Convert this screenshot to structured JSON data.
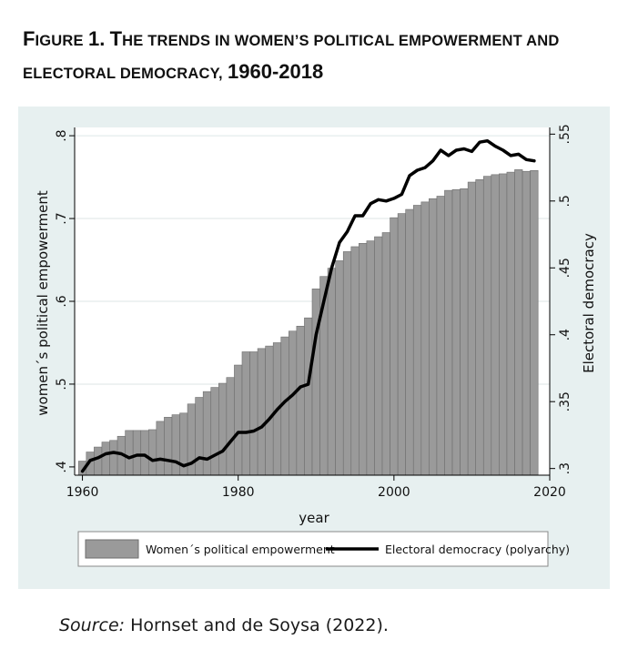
{
  "figure": {
    "title_lead_F": "F",
    "title_lead_rest": "igure",
    "title_number": "1.",
    "title_lead_T": "T",
    "title_rest_1": "he trends in women’s political empowerment and",
    "title_rest_2": "electoral democracy,",
    "title_years": "1960-2018"
  },
  "source": {
    "label": "Source:",
    "text": "Hornset and de Soysa (2022)."
  },
  "colors": {
    "panel_bg": "#e7f0f0",
    "plot_bg": "#ffffff",
    "bar_fill": "#9a9a9a",
    "bar_edge": "#6e6e6e",
    "line": "#000000",
    "grid": "#dde6e6"
  },
  "chart_data": {
    "type": "bar+line",
    "xlabel": "year",
    "ylabel_left": "women´s political empowerment",
    "ylabel_right": "Electoral democracy",
    "xlim": [
      1959,
      2020
    ],
    "ylim_left": [
      0.39,
      0.81
    ],
    "ylim_right": [
      0.295,
      0.555
    ],
    "x_ticks": [
      1960,
      1980,
      2000,
      2020
    ],
    "x_tick_labels": [
      "1960",
      "1980",
      "2000",
      "2020"
    ],
    "y_left_ticks": [
      0.4,
      0.5,
      0.6,
      0.7,
      0.8
    ],
    "y_left_tick_labels": [
      ".4",
      ".5",
      ".6",
      ".7",
      ".8"
    ],
    "y_right_ticks": [
      0.3,
      0.35,
      0.4,
      0.45,
      0.5,
      0.55
    ],
    "y_right_tick_labels": [
      ".3",
      ".35",
      ".4",
      ".45",
      ".5",
      ".55"
    ],
    "legend": [
      "Women´s political empowerment",
      "Electoral democracy (polyarchy)"
    ],
    "legend_position": "bottom",
    "series": [
      {
        "name": "Women´s political empowerment",
        "type": "bar",
        "axis": "left",
        "x": [
          1960,
          1961,
          1962,
          1963,
          1964,
          1965,
          1966,
          1967,
          1968,
          1969,
          1970,
          1971,
          1972,
          1973,
          1974,
          1975,
          1976,
          1977,
          1978,
          1979,
          1980,
          1981,
          1982,
          1983,
          1984,
          1985,
          1986,
          1987,
          1988,
          1989,
          1990,
          1991,
          1992,
          1993,
          1994,
          1995,
          1996,
          1997,
          1998,
          1999,
          2000,
          2001,
          2002,
          2003,
          2004,
          2005,
          2006,
          2007,
          2008,
          2009,
          2010,
          2011,
          2012,
          2013,
          2014,
          2015,
          2016,
          2017,
          2018
        ],
        "values": [
          0.407,
          0.418,
          0.424,
          0.43,
          0.432,
          0.437,
          0.444,
          0.444,
          0.444,
          0.445,
          0.455,
          0.46,
          0.463,
          0.465,
          0.476,
          0.484,
          0.491,
          0.496,
          0.501,
          0.508,
          0.523,
          0.539,
          0.539,
          0.543,
          0.546,
          0.55,
          0.557,
          0.564,
          0.57,
          0.58,
          0.615,
          0.63,
          0.64,
          0.649,
          0.66,
          0.666,
          0.67,
          0.673,
          0.678,
          0.683,
          0.701,
          0.706,
          0.711,
          0.716,
          0.72,
          0.724,
          0.727,
          0.734,
          0.735,
          0.736,
          0.744,
          0.747,
          0.751,
          0.753,
          0.754,
          0.756,
          0.759,
          0.757,
          0.758
        ]
      },
      {
        "name": "Electoral democracy (polyarchy)",
        "type": "line",
        "axis": "right",
        "x": [
          1960,
          1961,
          1962,
          1963,
          1964,
          1965,
          1966,
          1967,
          1968,
          1969,
          1970,
          1971,
          1972,
          1973,
          1974,
          1975,
          1976,
          1977,
          1978,
          1979,
          1980,
          1981,
          1982,
          1983,
          1984,
          1985,
          1986,
          1987,
          1988,
          1989,
          1990,
          1991,
          1992,
          1993,
          1994,
          1995,
          1996,
          1997,
          1998,
          1999,
          2000,
          2001,
          2002,
          2003,
          2004,
          2005,
          2006,
          2007,
          2008,
          2009,
          2010,
          2011,
          2012,
          2013,
          2014,
          2015,
          2016,
          2017,
          2018
        ],
        "values": [
          0.298,
          0.306,
          0.308,
          0.311,
          0.312,
          0.311,
          0.308,
          0.31,
          0.31,
          0.306,
          0.307,
          0.306,
          0.305,
          0.302,
          0.304,
          0.308,
          0.307,
          0.31,
          0.313,
          0.32,
          0.327,
          0.327,
          0.328,
          0.331,
          0.337,
          0.344,
          0.35,
          0.355,
          0.361,
          0.363,
          0.4,
          0.425,
          0.45,
          0.469,
          0.477,
          0.489,
          0.489,
          0.498,
          0.501,
          0.5,
          0.502,
          0.505,
          0.519,
          0.523,
          0.525,
          0.53,
          0.538,
          0.534,
          0.538,
          0.539,
          0.537,
          0.544,
          0.545,
          0.541,
          0.538,
          0.534,
          0.535,
          0.531,
          0.53
        ]
      }
    ]
  }
}
